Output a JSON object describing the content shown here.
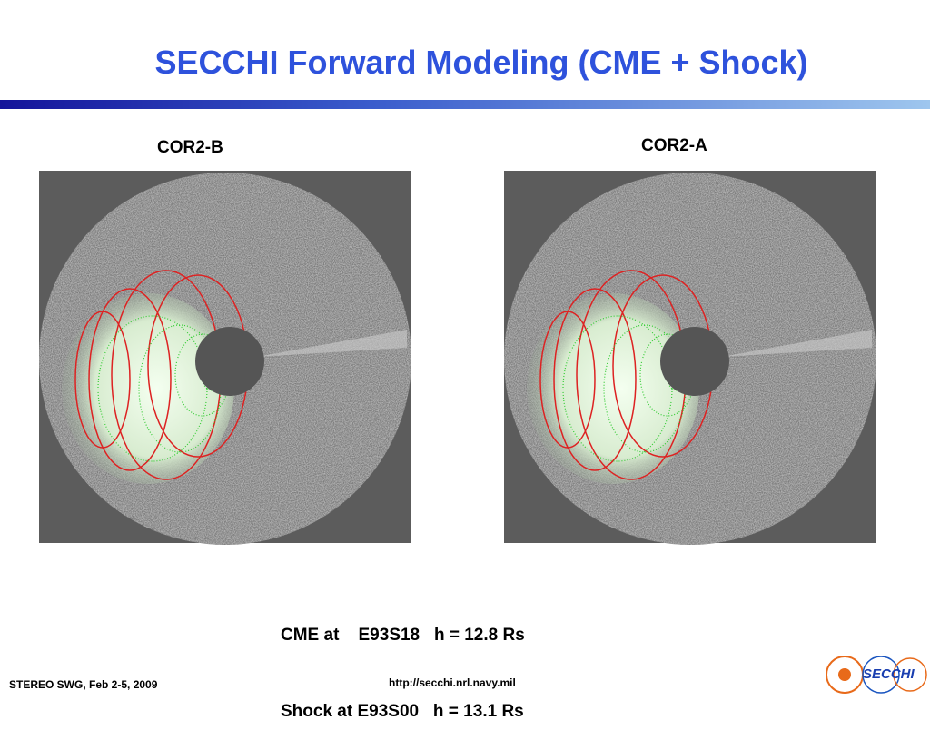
{
  "header": {
    "title": "SECCHI Forward Modeling (CME + Shock)"
  },
  "panels": [
    {
      "label": "COR2-B"
    },
    {
      "label": "COR2-A"
    }
  ],
  "caption": [
    "CME at    E93S18   h = 12.8 Rs",
    "Shock at E93S00   h = 13.1 Rs"
  ],
  "footer": {
    "left": "STEREO SWG, Feb 2-5, 2009",
    "center": "http://secchi.nrl.navy.mil",
    "logo": "SECCHI"
  }
}
